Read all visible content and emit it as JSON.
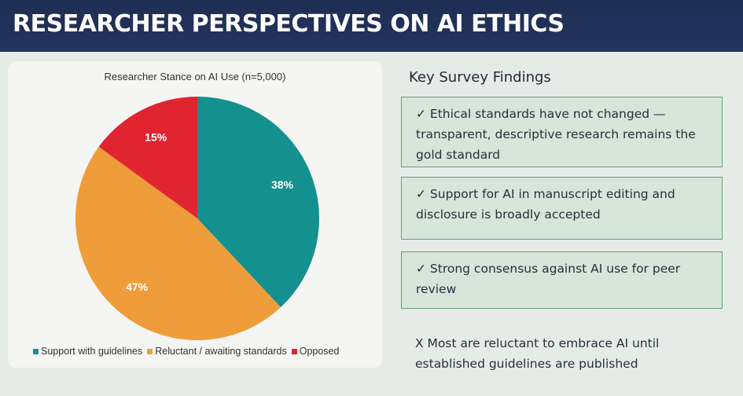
{
  "slide": {
    "title": "RESEARCHER PERSPECTIVES ON AI ETHICS"
  },
  "chart_data": {
    "type": "pie",
    "title": "Researcher Stance on AI Use (n=5,000)",
    "categories": [
      "Support with guidelines",
      "Reluctant / awaiting standards",
      "Opposed"
    ],
    "values": [
      38,
      47,
      15
    ],
    "labels": [
      "38%",
      "47%",
      "15%"
    ],
    "colors": [
      "#14918f",
      "#ef9d3a",
      "#e02530"
    ],
    "legend_position": "bottom"
  },
  "findings": {
    "title": "Key Survey Findings",
    "items": [
      {
        "lines": [
          "✓ Ethical standards have not changed —",
          "transparent, descriptive research remains the",
          "gold standard"
        ]
      },
      {
        "lines": [
          "✓ Support for AI in manuscript editing and",
          "disclosure is broadly accepted"
        ]
      },
      {
        "lines": [
          "✓ Strong consensus against AI use for peer",
          "review"
        ]
      },
      {
        "lines": [
          "X Most are reluctant to embrace AI until",
          "established guidelines are published"
        ]
      }
    ]
  }
}
